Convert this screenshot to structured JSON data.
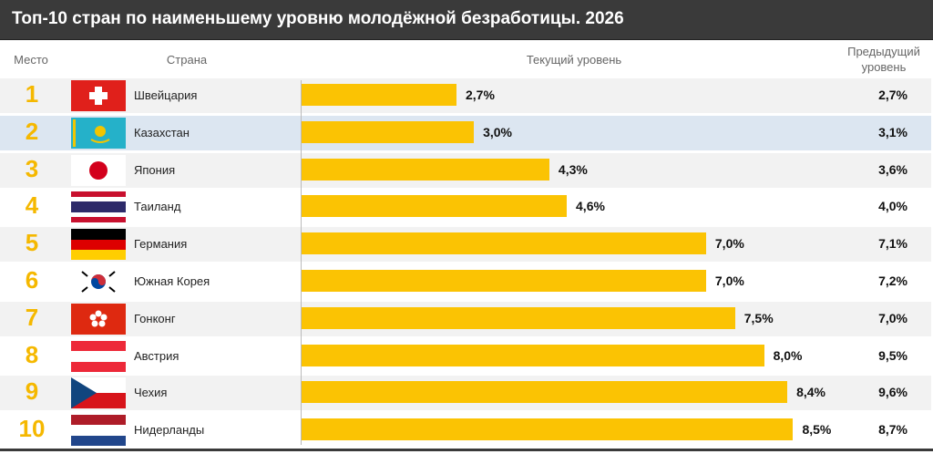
{
  "title": "Топ-10 стран по наименьшему уровню молодёжной безработицы. 2026",
  "headers": {
    "rank": "Место",
    "country": "Страна",
    "current": "Текущий уровень",
    "previous": "Предыдущий уровень"
  },
  "colors": {
    "bar": "#fbc303",
    "rank": "#f5b800",
    "highlight_row": "#dce6f1",
    "title_bg": "#3a3a3a"
  },
  "chart_data": {
    "type": "bar",
    "orientation": "horizontal",
    "title": "Топ-10 стран по наименьшему уровню молодёжной безработицы. 2026",
    "xlim": [
      0,
      12
    ],
    "grid": false,
    "categories": [
      "Швейцария",
      "Казахстан",
      "Япония",
      "Таиланд",
      "Германия",
      "Южная Корея",
      "Гонконг",
      "Австрия",
      "Чехия",
      "Нидерланды"
    ],
    "series": [
      {
        "values": [
          2.7,
          3.0,
          4.3,
          4.6,
          7.0,
          7.0,
          7.5,
          8.0,
          8.4,
          8.5
        ]
      }
    ],
    "rows": [
      {
        "rank": "1",
        "country": "Швейцария",
        "flag": "switzerland-flag",
        "current": 2.7,
        "current_label": "2,7%",
        "previous_label": "2,7%"
      },
      {
        "rank": "2",
        "country": "Казахстан",
        "flag": "kazakhstan-flag",
        "current": 3.0,
        "current_label": "3,0%",
        "previous_label": "3,1%"
      },
      {
        "rank": "3",
        "country": "Япония",
        "flag": "japan-flag",
        "current": 4.3,
        "current_label": "4,3%",
        "previous_label": "3,6%"
      },
      {
        "rank": "4",
        "country": "Таиланд",
        "flag": "thailand-flag",
        "current": 4.6,
        "current_label": "4,6%",
        "previous_label": "4,0%"
      },
      {
        "rank": "5",
        "country": "Германия",
        "flag": "germany-flag",
        "current": 7.0,
        "current_label": "7,0%",
        "previous_label": "7,1%"
      },
      {
        "rank": "6",
        "country": "Южная Корея",
        "flag": "south-korea-flag",
        "current": 7.0,
        "current_label": "7,0%",
        "previous_label": "7,2%"
      },
      {
        "rank": "7",
        "country": "Гонконг",
        "flag": "hong-kong-flag",
        "current": 7.5,
        "current_label": "7,5%",
        "previous_label": "7,0%"
      },
      {
        "rank": "8",
        "country": "Австрия",
        "flag": "austria-flag",
        "current": 8.0,
        "current_label": "8,0%",
        "previous_label": "9,5%"
      },
      {
        "rank": "9",
        "country": "Чехия",
        "flag": "czech-flag",
        "current": 8.4,
        "current_label": "8,4%",
        "previous_label": "9,6%"
      },
      {
        "rank": "10",
        "country": "Нидерланды",
        "flag": "netherlands-flag",
        "current": 8.5,
        "current_label": "8,5%",
        "previous_label": "8,7%"
      }
    ]
  }
}
